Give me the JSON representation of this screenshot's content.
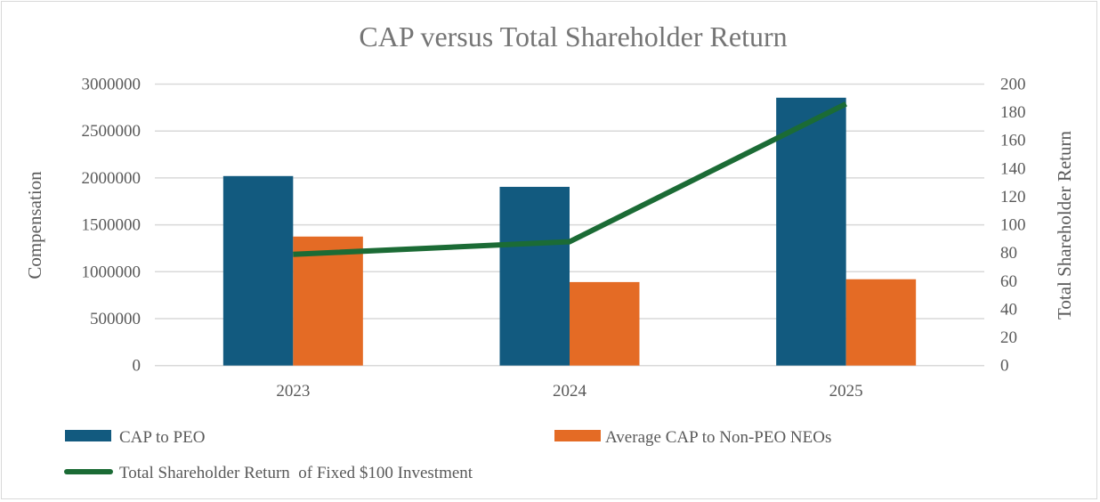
{
  "chart_data": {
    "type": "bar",
    "title": "CAP versus Total Shareholder Return",
    "categories": [
      "2023",
      "2024",
      "2025"
    ],
    "xlabel": "",
    "ylabel": "Compensation",
    "y2label": "Total Shareholder Return",
    "ylim": [
      0,
      3000000
    ],
    "y2lim": [
      0,
      200
    ],
    "yticks": [
      0,
      500000,
      1000000,
      1500000,
      2000000,
      2500000,
      3000000
    ],
    "y2ticks": [
      0,
      20,
      40,
      60,
      80,
      100,
      120,
      140,
      160,
      180,
      200
    ],
    "grid": true,
    "legend_position": "bottom",
    "series": [
      {
        "name": "CAP to PEO",
        "type": "bar",
        "axis": "left",
        "color": "#125a7f",
        "values": [
          2020000,
          1905000,
          2855000
        ]
      },
      {
        "name": "Average CAP to Non-PEO NEOs",
        "type": "bar",
        "axis": "left",
        "color": "#e46b25",
        "values": [
          1375000,
          890000,
          920000
        ]
      },
      {
        "name": "Total Shareholder Return  of Fixed $100 Investment",
        "type": "line",
        "axis": "right",
        "color": "#1b6b35",
        "values": [
          79,
          88,
          186
        ]
      }
    ]
  }
}
